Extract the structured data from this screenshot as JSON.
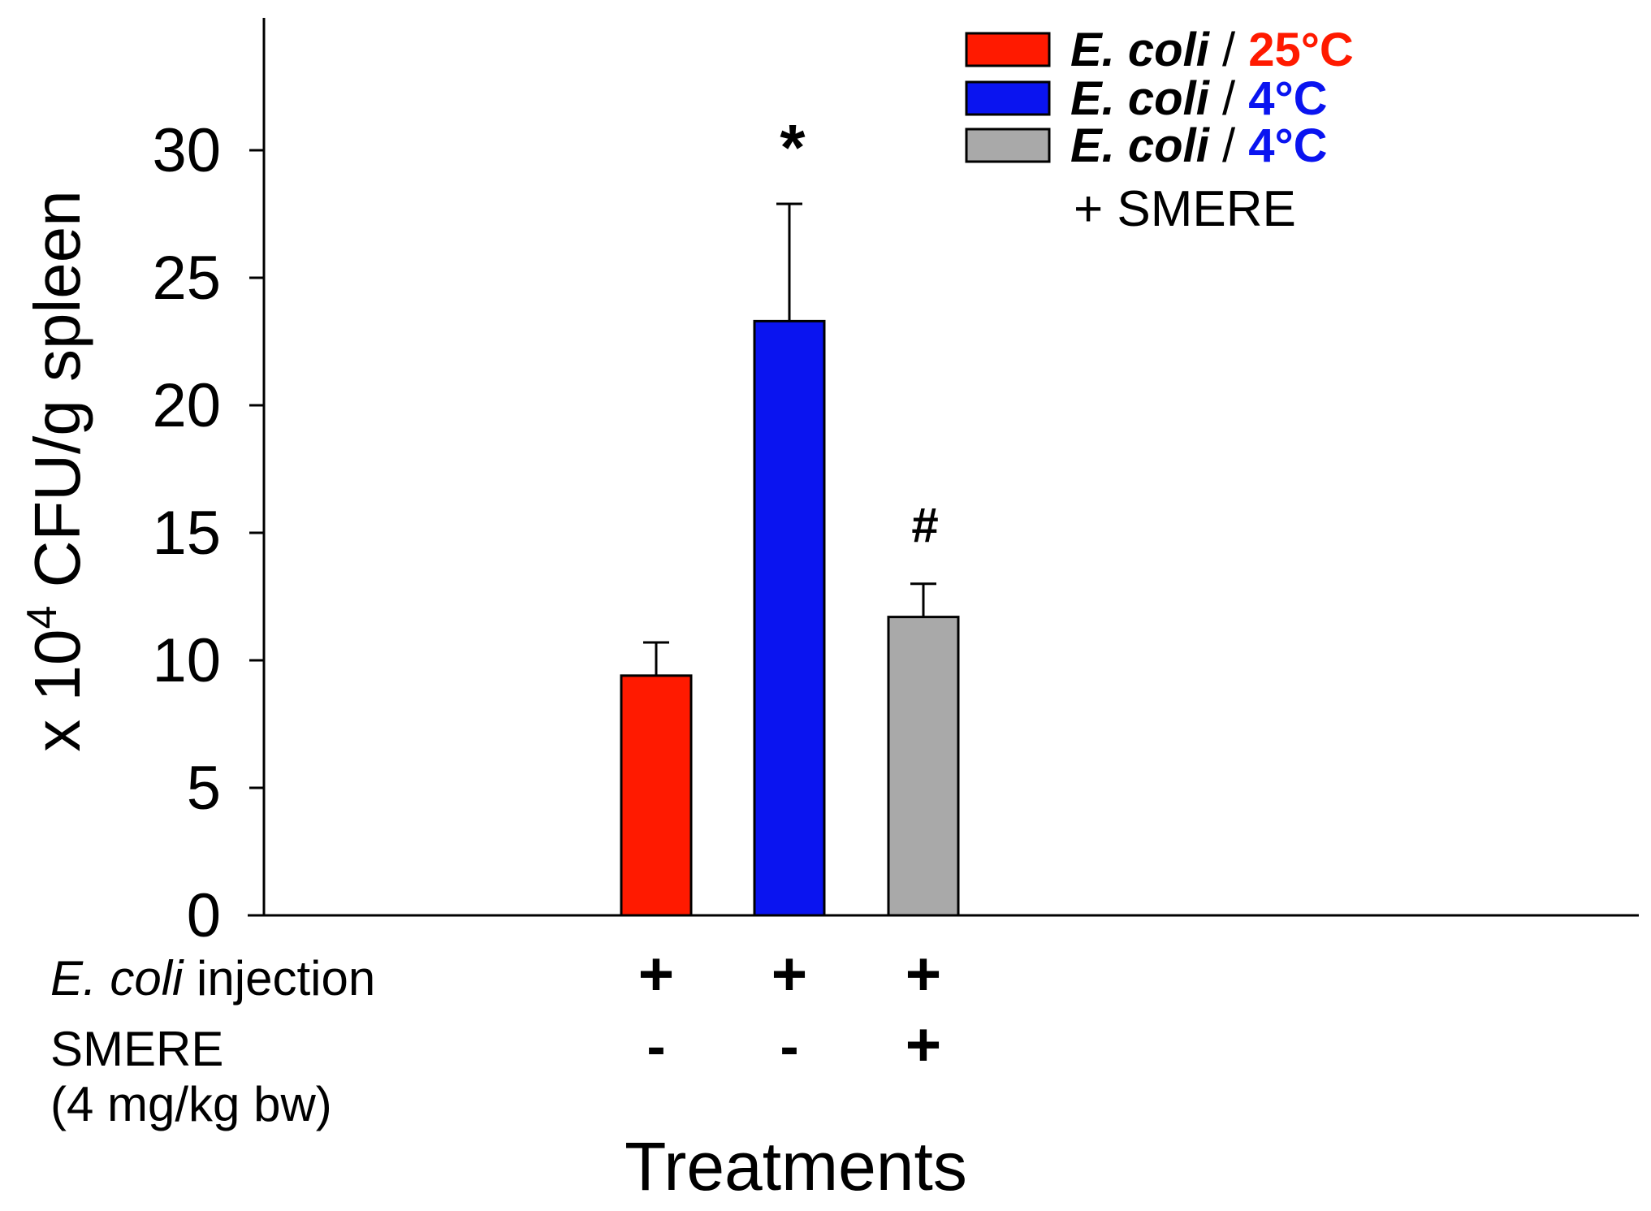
{
  "chart_data": {
    "type": "bar",
    "title": "",
    "categories": [
      "E. coli / 25°C",
      "E. coli / 4°C",
      "E. coli / 4°C + SMERE"
    ],
    "values": [
      9.4,
      23.3,
      11.7
    ],
    "errors": [
      1.3,
      4.6,
      1.3
    ],
    "colors": [
      "#ff1a00",
      "#0a14f0",
      "#a9a9a9"
    ],
    "significance": [
      "",
      "*",
      "#"
    ],
    "ylabel_prefix": "x 10",
    "ylabel_sup": "4",
    "ylabel_suffix": " CFU/g spleen",
    "xlabel": "Treatments",
    "ylim": [
      0,
      35
    ],
    "yticks": [
      0,
      5,
      10,
      15,
      20,
      25,
      30
    ],
    "grid": false,
    "legend": {
      "position": "top-right",
      "entries": [
        {
          "species": "E. coli",
          "sep": "/",
          "temp": "25°C",
          "temp_color": "#ff1a00",
          "swatch": "#ff1a00"
        },
        {
          "species": "E. coli",
          "sep": "/",
          "temp": "4°C",
          "temp_color": "#0a14f0",
          "swatch": "#0a14f0"
        },
        {
          "species": "E. coli",
          "sep": "/",
          "temp": "4°C",
          "temp_color": "#0a14f0",
          "swatch": "#a9a9a9"
        }
      ],
      "extra_line": "+ SMERE"
    },
    "treatment_table": {
      "rows": [
        {
          "label_italic": "E. coli",
          "label_rest": " injection",
          "label_line2": "",
          "marks": [
            "+",
            "+",
            "+"
          ]
        },
        {
          "label_italic": "",
          "label_rest": "SMERE",
          "label_line2": "(4 mg/kg bw)",
          "marks": [
            "-",
            "-",
            "+"
          ]
        }
      ]
    }
  }
}
